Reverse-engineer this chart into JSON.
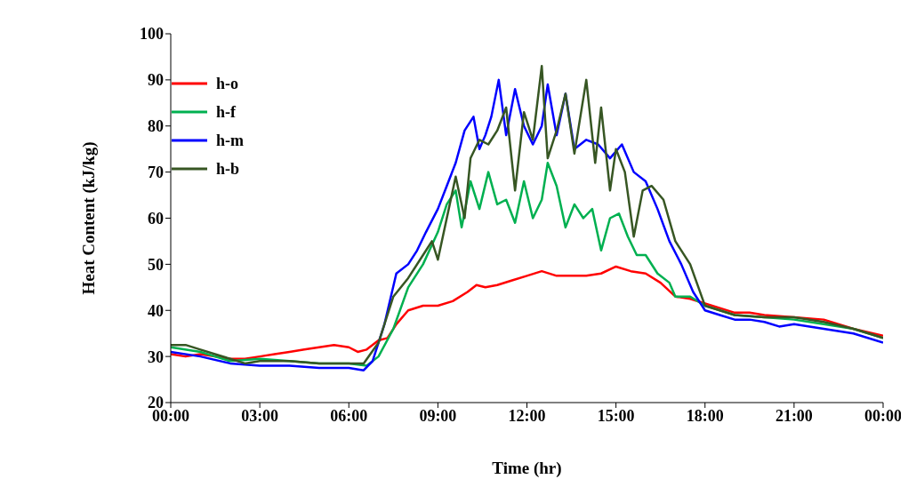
{
  "chart_data": {
    "type": "line",
    "xlabel": "Time (hr)",
    "ylabel": "Heat Content (kJ/kg)",
    "xlim": [
      0,
      24
    ],
    "xticks": [
      {
        "value": 0,
        "label": "00:00"
      },
      {
        "value": 3,
        "label": "03:00"
      },
      {
        "value": 6,
        "label": "06:00"
      },
      {
        "value": 9,
        "label": "09:00"
      },
      {
        "value": 12,
        "label": "12:00"
      },
      {
        "value": 15,
        "label": "15:00"
      },
      {
        "value": 18,
        "label": "18:00"
      },
      {
        "value": 21,
        "label": "21:00"
      },
      {
        "value": 24,
        "label": "00:00"
      }
    ],
    "ylim": [
      20,
      100
    ],
    "yticks": [
      20,
      30,
      40,
      50,
      60,
      70,
      80,
      90,
      100
    ],
    "legend": "top left",
    "marker": "none",
    "line_style": "solid",
    "series": [
      {
        "name": "h-o",
        "color": "#ff0000",
        "x": [
          0,
          0.5,
          1,
          2,
          2.5,
          3,
          3.5,
          4,
          4.5,
          5,
          5.5,
          6,
          6.3,
          6.6,
          7,
          7.3,
          7.6,
          8,
          8.5,
          9,
          9.5,
          10,
          10.3,
          10.6,
          11,
          11.5,
          12,
          12.5,
          13,
          13.5,
          14,
          14.5,
          15,
          15.5,
          16,
          16.5,
          17,
          17.5,
          18,
          19,
          19.5,
          20,
          21,
          22,
          23,
          24
        ],
        "values": [
          30.5,
          30,
          30.5,
          29.5,
          29.5,
          30,
          30.5,
          31,
          31.5,
          32,
          32.5,
          32,
          31,
          31.5,
          33.5,
          34,
          37,
          40,
          41,
          41,
          42,
          44,
          45.5,
          45,
          45.5,
          46.5,
          47.5,
          48.5,
          47.5,
          47.5,
          47.5,
          48,
          49.5,
          48.5,
          48,
          46,
          43,
          42.5,
          41.5,
          39.5,
          39.5,
          39,
          38.5,
          38,
          36,
          34.5
        ]
      },
      {
        "name": "h-f",
        "color": "#00b050",
        "x": [
          0,
          1,
          2,
          3,
          4,
          5,
          6,
          6.6,
          7,
          7.5,
          8,
          8.5,
          9,
          9.3,
          9.6,
          9.8,
          10.1,
          10.4,
          10.7,
          11,
          11.3,
          11.6,
          11.9,
          12.2,
          12.5,
          12.7,
          13,
          13.3,
          13.6,
          13.9,
          14.2,
          14.5,
          14.8,
          15.1,
          15.4,
          15.7,
          16,
          16.4,
          16.8,
          17,
          17.5,
          18,
          19,
          20,
          21,
          22,
          23,
          24
        ],
        "values": [
          32,
          31,
          29,
          29.5,
          29,
          28.5,
          28.5,
          28,
          30,
          36,
          45,
          50,
          57,
          63,
          66,
          58,
          68,
          62,
          70,
          63,
          64,
          59,
          68,
          60,
          64,
          72,
          67,
          58,
          63,
          60,
          62,
          53,
          60,
          61,
          56,
          52,
          52,
          48,
          46,
          43,
          43,
          41,
          39,
          38.5,
          38,
          37,
          36,
          34
        ]
      },
      {
        "name": "h-m",
        "color": "#0000ff",
        "x": [
          0,
          1,
          2,
          3,
          4,
          5,
          6,
          6.5,
          6.8,
          7.2,
          7.6,
          8,
          8.3,
          8.6,
          9,
          9.3,
          9.6,
          9.9,
          10.2,
          10.4,
          10.6,
          10.8,
          11.05,
          11.3,
          11.6,
          11.9,
          12.2,
          12.5,
          12.7,
          13,
          13.3,
          13.6,
          14,
          14.4,
          14.8,
          15.2,
          15.6,
          16,
          16.4,
          16.8,
          17.2,
          17.6,
          18,
          18.5,
          19,
          19.5,
          20,
          20.5,
          21,
          22,
          23,
          24
        ],
        "values": [
          31,
          30,
          28.5,
          28,
          28,
          27.5,
          27.5,
          27,
          29,
          37,
          48,
          50,
          53,
          57,
          62,
          67,
          72,
          79,
          82,
          75,
          78,
          82,
          90,
          78,
          88,
          80,
          76,
          80,
          89,
          78,
          87,
          75,
          77,
          76,
          73,
          76,
          70,
          68,
          62,
          55,
          50,
          44,
          40,
          39,
          38,
          38,
          37.5,
          36.5,
          37,
          36,
          35,
          33
        ]
      },
      {
        "name": "h-b",
        "color": "#375623",
        "x": [
          0,
          0.5,
          1,
          2,
          2.5,
          3,
          4,
          5,
          6,
          6.5,
          7,
          7.5,
          8,
          8.5,
          8.8,
          9,
          9.3,
          9.6,
          9.9,
          10.1,
          10.4,
          10.7,
          11,
          11.3,
          11.6,
          11.9,
          12.2,
          12.5,
          12.7,
          13,
          13.3,
          13.6,
          14,
          14.3,
          14.5,
          14.8,
          15,
          15.3,
          15.6,
          15.9,
          16.2,
          16.6,
          17,
          17.5,
          18,
          18.5,
          19,
          20,
          21,
          22,
          23,
          24
        ],
        "values": [
          32.5,
          32.5,
          31.5,
          29.5,
          28.5,
          29,
          29,
          28.5,
          28.5,
          28.5,
          33,
          43,
          47,
          52,
          55,
          51,
          60,
          69,
          60,
          73,
          77,
          76,
          79,
          84,
          66,
          83,
          77,
          93,
          73,
          79,
          87,
          74,
          90,
          72,
          84,
          66,
          75,
          70,
          56,
          66,
          67,
          64,
          55,
          50,
          41,
          40,
          39,
          38.5,
          38.5,
          37.5,
          36,
          34
        ]
      }
    ]
  }
}
